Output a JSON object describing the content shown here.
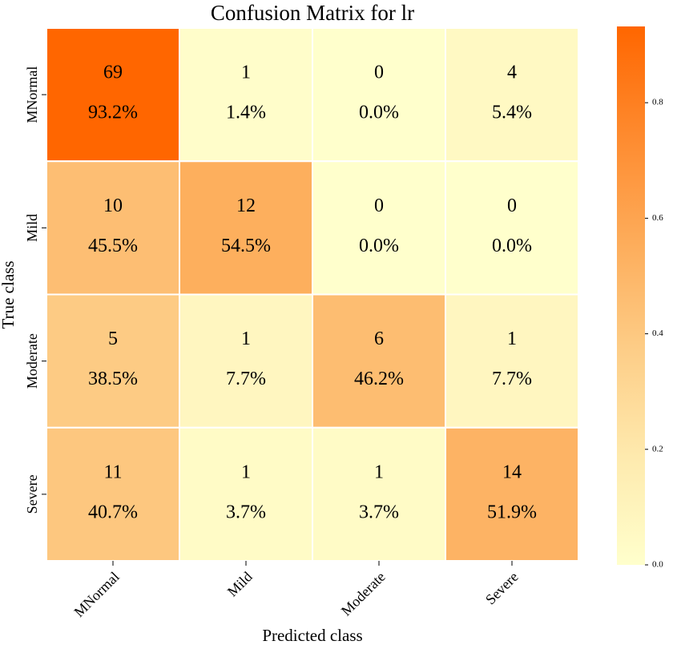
{
  "chart_data": {
    "type": "heatmap",
    "title": "Confusion Matrix for lr",
    "x_label": "Predicted class",
    "y_label": "True class",
    "x_categories": [
      "MNormal",
      "Mild",
      "Moderate",
      "Severe"
    ],
    "y_categories": [
      "MNormal",
      "Mild",
      "Moderate",
      "Severe"
    ],
    "counts": [
      [
        69,
        1,
        0,
        4
      ],
      [
        10,
        12,
        0,
        0
      ],
      [
        5,
        1,
        6,
        1
      ],
      [
        11,
        1,
        1,
        14
      ]
    ],
    "values": [
      [
        0.932,
        0.014,
        0.0,
        0.054
      ],
      [
        0.455,
        0.545,
        0.0,
        0.0
      ],
      [
        0.385,
        0.077,
        0.462,
        0.077
      ],
      [
        0.407,
        0.037,
        0.037,
        0.519
      ]
    ],
    "value_labels": [
      [
        "93.2%",
        "1.4%",
        "0.0%",
        "5.4%"
      ],
      [
        "45.5%",
        "54.5%",
        "0.0%",
        "0.0%"
      ],
      [
        "38.5%",
        "7.7%",
        "46.2%",
        "7.7%"
      ],
      [
        "40.7%",
        "3.7%",
        "3.7%",
        "51.9%"
      ]
    ],
    "colormap": [
      "#ffffcc",
      "#feeaae",
      "#fdcd87",
      "#fdac5a",
      "#fe8a2e",
      "#ff6600"
    ],
    "clim": [
      0,
      0.932
    ],
    "cticks": [
      {
        "value": 0,
        "label": "0.0"
      },
      0.2,
      0.4,
      0.6,
      0.8
    ]
  }
}
